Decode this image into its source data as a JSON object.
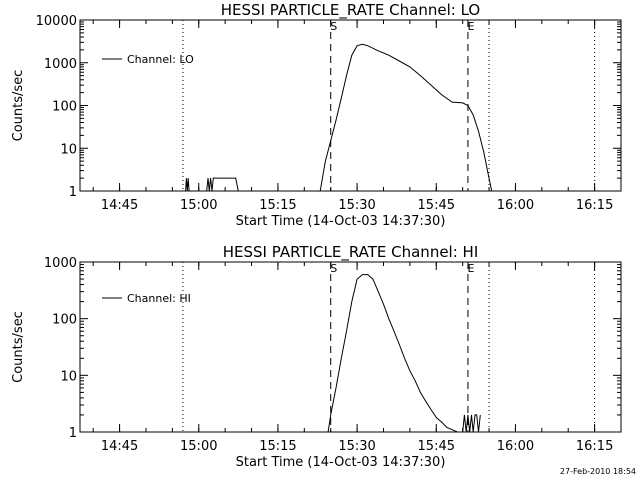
{
  "chart_data": [
    {
      "type": "line",
      "title": "HESSI PARTICLE_RATE Channel: LO",
      "xlabel": "Start Time (14-Oct-03 14:37:30)",
      "ylabel": "Counts/sec",
      "yscale": "log",
      "ylim": [
        1,
        10000
      ],
      "xlim": [
        "14:37:30",
        "16:20:00"
      ],
      "x_ticks": [
        "14:45",
        "15:00",
        "15:15",
        "15:30",
        "15:45",
        "16:00",
        "16:15"
      ],
      "y_ticks": [
        "1",
        "10",
        "100",
        "1000",
        "10000"
      ],
      "legend": {
        "placement": "top-left",
        "entries": [
          "Channel: LO"
        ]
      },
      "grid": false,
      "markers": [
        {
          "label": "S",
          "x": "15:25:00",
          "style": "dashed"
        },
        {
          "label": "E",
          "x": "15:51:00",
          "style": "dashed"
        },
        {
          "label": "",
          "x": "14:57:00",
          "style": "dotted"
        },
        {
          "label": "",
          "x": "15:55:00",
          "style": "dotted"
        },
        {
          "label": "",
          "x": "16:15:00",
          "style": "dotted"
        }
      ],
      "series": [
        {
          "name": "Channel: LO",
          "x": [
            "14:57:30",
            "14:57:40",
            "14:57:50",
            "14:58:00",
            "14:58:10",
            "15:01:30",
            "15:01:45",
            "15:02:00",
            "15:02:15",
            "15:02:30",
            "15:02:45",
            "15:06:00",
            "15:06:15",
            "15:07:00",
            "15:07:30",
            "15:23:00",
            "15:24:00",
            "15:25:00",
            "15:26:00",
            "15:27:00",
            "15:28:00",
            "15:29:00",
            "15:30:00",
            "15:31:00",
            "15:32:00",
            "15:34:00",
            "15:36:00",
            "15:38:00",
            "15:40:00",
            "15:42:00",
            "15:44:00",
            "15:46:00",
            "15:48:00",
            "15:50:00",
            "15:51:00",
            "15:52:00",
            "15:53:00",
            "15:54:00",
            "15:55:00",
            "15:55:30"
          ],
          "y": [
            1,
            2,
            1,
            2,
            1,
            1,
            2,
            1,
            2,
            1,
            2,
            2,
            2,
            2,
            1,
            1,
            5,
            15,
            45,
            150,
            500,
            1500,
            2500,
            2700,
            2500,
            1900,
            1500,
            1100,
            800,
            500,
            300,
            180,
            120,
            115,
            100,
            60,
            25,
            8,
            2,
            1
          ]
        }
      ]
    },
    {
      "type": "line",
      "title": "HESSI PARTICLE_RATE Channel: HI",
      "xlabel": "Start Time (14-Oct-03 14:37:30)",
      "ylabel": "Counts/sec",
      "yscale": "log",
      "ylim": [
        1,
        1000
      ],
      "xlim": [
        "14:37:30",
        "16:20:00"
      ],
      "x_ticks": [
        "14:45",
        "15:00",
        "15:15",
        "15:30",
        "15:45",
        "16:00",
        "16:15"
      ],
      "y_ticks": [
        "1",
        "10",
        "100",
        "1000"
      ],
      "legend": {
        "placement": "top-left",
        "entries": [
          "Channel: HI"
        ]
      },
      "grid": false,
      "markers": [
        {
          "label": "S",
          "x": "15:25:00",
          "style": "dashed"
        },
        {
          "label": "E",
          "x": "15:51:00",
          "style": "dashed"
        },
        {
          "label": "",
          "x": "14:57:00",
          "style": "dotted"
        },
        {
          "label": "",
          "x": "15:55:00",
          "style": "dotted"
        },
        {
          "label": "",
          "x": "16:15:00",
          "style": "dotted"
        }
      ],
      "series": [
        {
          "name": "Channel: HI",
          "x": [
            "15:24:30",
            "15:25:00",
            "15:26:00",
            "15:27:00",
            "15:28:00",
            "15:29:00",
            "15:30:00",
            "15:31:00",
            "15:32:00",
            "15:33:00",
            "15:34:00",
            "15:35:00",
            "15:36:00",
            "15:37:00",
            "15:38:00",
            "15:39:00",
            "15:40:00",
            "15:41:00",
            "15:42:00",
            "15:43:00",
            "15:44:00",
            "15:45:00",
            "15:46:00",
            "15:47:00",
            "15:48:00",
            "15:49:00",
            "15:49:30",
            "15:50:00",
            "15:50:20",
            "15:50:40",
            "15:51:00",
            "15:51:20",
            "15:51:40",
            "15:52:00",
            "15:52:20",
            "15:52:40",
            "15:53:00",
            "15:53:20"
          ],
          "y": [
            1,
            2,
            6,
            20,
            60,
            200,
            500,
            600,
            600,
            500,
            300,
            180,
            100,
            60,
            35,
            20,
            12,
            8,
            5,
            3.5,
            2.5,
            1.8,
            1.5,
            1.2,
            1.1,
            1,
            1,
            1,
            2,
            1,
            2,
            1,
            2,
            1,
            2,
            2,
            1,
            2
          ]
        }
      ]
    }
  ],
  "timestamp": "27-Feb-2010 18:54"
}
